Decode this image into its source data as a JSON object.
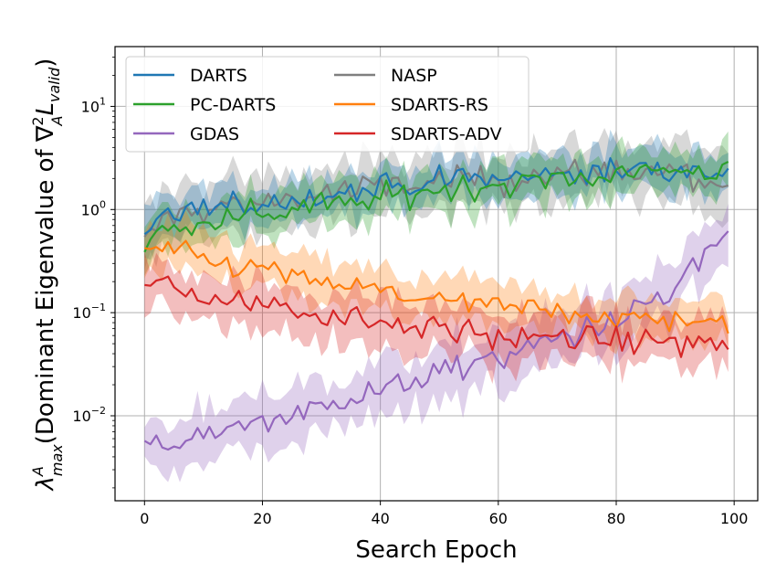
{
  "chart_data": {
    "type": "line",
    "title": "",
    "xlabel": "Search Epoch",
    "ylabel_parts": {
      "lambda": "λ",
      "lambda_sup": "A",
      "lambda_sub": "max",
      "text": "(Dominant Eigenvalue of ∇",
      "nabla_sup": "2",
      "nabla_sub": "A",
      "L": "L",
      "L_sub": "valid",
      "close": ")"
    },
    "x_ticks": [
      0,
      20,
      40,
      60,
      80,
      100
    ],
    "y_ticks": [
      {
        "value": 0.01,
        "base": "10",
        "exp": "−2"
      },
      {
        "value": 0.1,
        "base": "10",
        "exp": "−1"
      },
      {
        "value": 1,
        "base": "10",
        "exp": "0"
      },
      {
        "value": 10,
        "base": "10",
        "exp": "1"
      }
    ],
    "xlim": [
      -5,
      104
    ],
    "ylim": [
      0.0015,
      38
    ],
    "yscale": "log",
    "grid": true,
    "legend_position": "top-left",
    "series": [
      {
        "name": "DARTS",
        "color": "#1f77b4",
        "anchors": [
          [
            0,
            0.55
          ],
          [
            3,
            0.85
          ],
          [
            8,
            0.95
          ],
          [
            15,
            1.05
          ],
          [
            25,
            1.25
          ],
          [
            35,
            1.5
          ],
          [
            45,
            1.75
          ],
          [
            55,
            1.95
          ],
          [
            65,
            2.1
          ],
          [
            75,
            2.3
          ],
          [
            85,
            2.4
          ],
          [
            95,
            2.4
          ],
          [
            99,
            2.2
          ]
        ],
        "noise": 0.13,
        "band": 0.22
      },
      {
        "name": "PC-DARTS",
        "color": "#2ca02c",
        "anchors": [
          [
            0,
            0.4
          ],
          [
            3,
            0.65
          ],
          [
            10,
            0.75
          ],
          [
            20,
            0.95
          ],
          [
            30,
            1.1
          ],
          [
            40,
            1.3
          ],
          [
            50,
            1.55
          ],
          [
            60,
            1.8
          ],
          [
            70,
            2.0
          ],
          [
            80,
            2.2
          ],
          [
            90,
            2.4
          ],
          [
            99,
            2.5
          ]
        ],
        "noise": 0.12,
        "band": 0.22
      },
      {
        "name": "GDAS",
        "color": "#9467bd",
        "anchors": [
          [
            0,
            0.0048
          ],
          [
            5,
            0.0045
          ],
          [
            10,
            0.0065
          ],
          [
            20,
            0.0095
          ],
          [
            30,
            0.012
          ],
          [
            40,
            0.018
          ],
          [
            50,
            0.026
          ],
          [
            60,
            0.038
          ],
          [
            70,
            0.055
          ],
          [
            80,
            0.085
          ],
          [
            88,
            0.14
          ],
          [
            93,
            0.25
          ],
          [
            96,
            0.42
          ],
          [
            99,
            0.6
          ]
        ],
        "noise": 0.13,
        "band": 0.28
      },
      {
        "name": "NASP",
        "color": "#7f7f7f",
        "anchors": [
          [
            0,
            0.45
          ],
          [
            3,
            0.8
          ],
          [
            10,
            1.0
          ],
          [
            20,
            1.2
          ],
          [
            30,
            1.4
          ],
          [
            40,
            1.6
          ],
          [
            50,
            1.8
          ],
          [
            60,
            2.0
          ],
          [
            70,
            2.2
          ],
          [
            80,
            2.3
          ],
          [
            90,
            2.4
          ],
          [
            99,
            1.7
          ]
        ],
        "noise": 0.16,
        "band": 0.3
      },
      {
        "name": "SDARTS-RS",
        "color": "#ff7f0e",
        "anchors": [
          [
            0,
            0.42
          ],
          [
            5,
            0.4
          ],
          [
            10,
            0.33
          ],
          [
            20,
            0.26
          ],
          [
            30,
            0.2
          ],
          [
            40,
            0.16
          ],
          [
            50,
            0.13
          ],
          [
            60,
            0.115
          ],
          [
            70,
            0.1
          ],
          [
            80,
            0.09
          ],
          [
            90,
            0.085
          ],
          [
            99,
            0.075
          ]
        ],
        "noise": 0.12,
        "band": 0.22
      },
      {
        "name": "SDARTS-ADV",
        "color": "#d62728",
        "anchors": [
          [
            0,
            0.2
          ],
          [
            5,
            0.17
          ],
          [
            10,
            0.15
          ],
          [
            20,
            0.12
          ],
          [
            30,
            0.1
          ],
          [
            40,
            0.085
          ],
          [
            50,
            0.07
          ],
          [
            60,
            0.06
          ],
          [
            70,
            0.055
          ],
          [
            80,
            0.052
          ],
          [
            90,
            0.05
          ],
          [
            99,
            0.052
          ]
        ],
        "noise": 0.13,
        "band": 0.25
      }
    ]
  }
}
